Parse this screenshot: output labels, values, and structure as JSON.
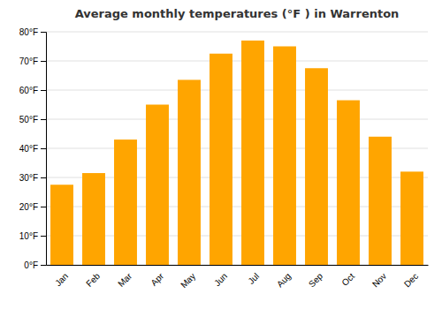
{
  "chart_data": {
    "type": "bar",
    "title": "Average monthly temperatures (°F ) in Warrenton",
    "categories": [
      "Jan",
      "Feb",
      "Mar",
      "Apr",
      "May",
      "Jun",
      "Jul",
      "Aug",
      "Sep",
      "Oct",
      "Nov",
      "Dec"
    ],
    "values": [
      27.5,
      31.5,
      43.0,
      55.0,
      63.5,
      72.5,
      77.0,
      75.0,
      67.5,
      56.5,
      44.0,
      32.0
    ],
    "color": "#FFA500",
    "ylim": [
      0,
      80
    ],
    "yticks": [
      {
        "value": 0,
        "label": "0°F"
      },
      {
        "value": 10,
        "label": "10°F"
      },
      {
        "value": 20,
        "label": "20°F"
      },
      {
        "value": 30,
        "label": "30°F"
      },
      {
        "value": 40,
        "label": "40°F"
      },
      {
        "value": 50,
        "label": "50°F"
      },
      {
        "value": 60,
        "label": "60°F"
      },
      {
        "value": 70,
        "label": "70°F"
      },
      {
        "value": 80,
        "label": "80°F"
      }
    ],
    "grid": true
  }
}
